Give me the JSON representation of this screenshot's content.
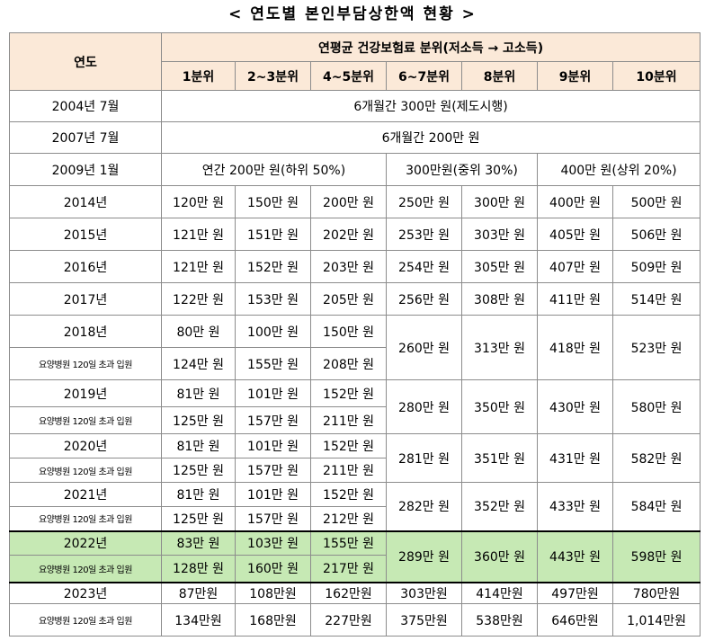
{
  "title": "< 연도별 본인부담상한액 현황 >",
  "header": {
    "year_col": "연도",
    "group": "연평균 건강보험료 분위(저소득 → 고소득)",
    "deciles": [
      "1분위",
      "2~3분위",
      "4~5분위",
      "6~7분위",
      "8분위",
      "9분위",
      "10분위"
    ]
  },
  "early": [
    {
      "year": "2004년 7월",
      "text": "6개월간 300만 원(제도시행)"
    },
    {
      "year": "2007년 7월",
      "text": "6개월간 200만 원"
    }
  ],
  "y2009": {
    "year": "2009년 1월",
    "low": "연간 200만 원(하위 50%)",
    "mid": "300만원(중위 30%)",
    "high": "400만 원(상위 20%)"
  },
  "simple_rows": [
    {
      "year": "2014년",
      "values": [
        "120만 원",
        "150만 원",
        "200만 원",
        "250만 원",
        "300만 원",
        "400만 원",
        "500만 원"
      ]
    },
    {
      "year": "2015년",
      "values": [
        "121만 원",
        "151만 원",
        "202만 원",
        "253만 원",
        "303만 원",
        "405만 원",
        "506만 원"
      ]
    },
    {
      "year": "2016년",
      "values": [
        "121만 원",
        "152만 원",
        "203만 원",
        "254만 원",
        "305만 원",
        "407만 원",
        "509만 원"
      ]
    },
    {
      "year": "2017년",
      "values": [
        "122만 원",
        "153만 원",
        "205만 원",
        "256만 원",
        "308만 원",
        "411만 원",
        "514만 원"
      ]
    }
  ],
  "sub_label": "요양병원 120일 초과 입원",
  "split_rows": [
    {
      "year": "2018년",
      "main": [
        "80만 원",
        "100만 원",
        "150만 원"
      ],
      "sub": [
        "124만 원",
        "155만 원",
        "208만 원"
      ],
      "shared": [
        "260만 원",
        "313만 원",
        "418만 원",
        "523만 원"
      ]
    },
    {
      "year": "2019년",
      "main": [
        "81만 원",
        "101만 원",
        "152만 원"
      ],
      "sub": [
        "125만 원",
        "157만 원",
        "211만 원"
      ],
      "shared": [
        "280만 원",
        "350만 원",
        "430만 원",
        "580만 원"
      ]
    },
    {
      "year": "2020년",
      "main": [
        "81만 원",
        "101만 원",
        "152만 원"
      ],
      "sub": [
        "125만 원",
        "157만 원",
        "211만 원"
      ],
      "shared": [
        "281만 원",
        "351만 원",
        "431만 원",
        "582만 원"
      ]
    },
    {
      "year": "2021년",
      "main": [
        "81만 원",
        "101만 원",
        "152만 원"
      ],
      "sub": [
        "125만 원",
        "157만 원",
        "212만 원"
      ],
      "shared": [
        "282만 원",
        "352만 원",
        "433만 원",
        "584만 원"
      ]
    },
    {
      "year": "2022년",
      "main": [
        "83만 원",
        "103만 원",
        "155만 원"
      ],
      "sub": [
        "128만 원",
        "160만 원",
        "217만 원"
      ],
      "shared": [
        "289만 원",
        "360만 원",
        "443만 원",
        "598만 원"
      ]
    }
  ],
  "y2023": {
    "year": "2023년",
    "main": [
      "87만원",
      "108만원",
      "162만원",
      "303만원",
      "414만원",
      "497만원",
      "780만원"
    ],
    "sub": [
      "134만원",
      "168만원",
      "227만원",
      "375만원",
      "538만원",
      "646만원",
      "1,014만원"
    ]
  },
  "colors": {
    "header_bg": "#fbe9d8",
    "highlight_bg": "#c6e9b4"
  }
}
